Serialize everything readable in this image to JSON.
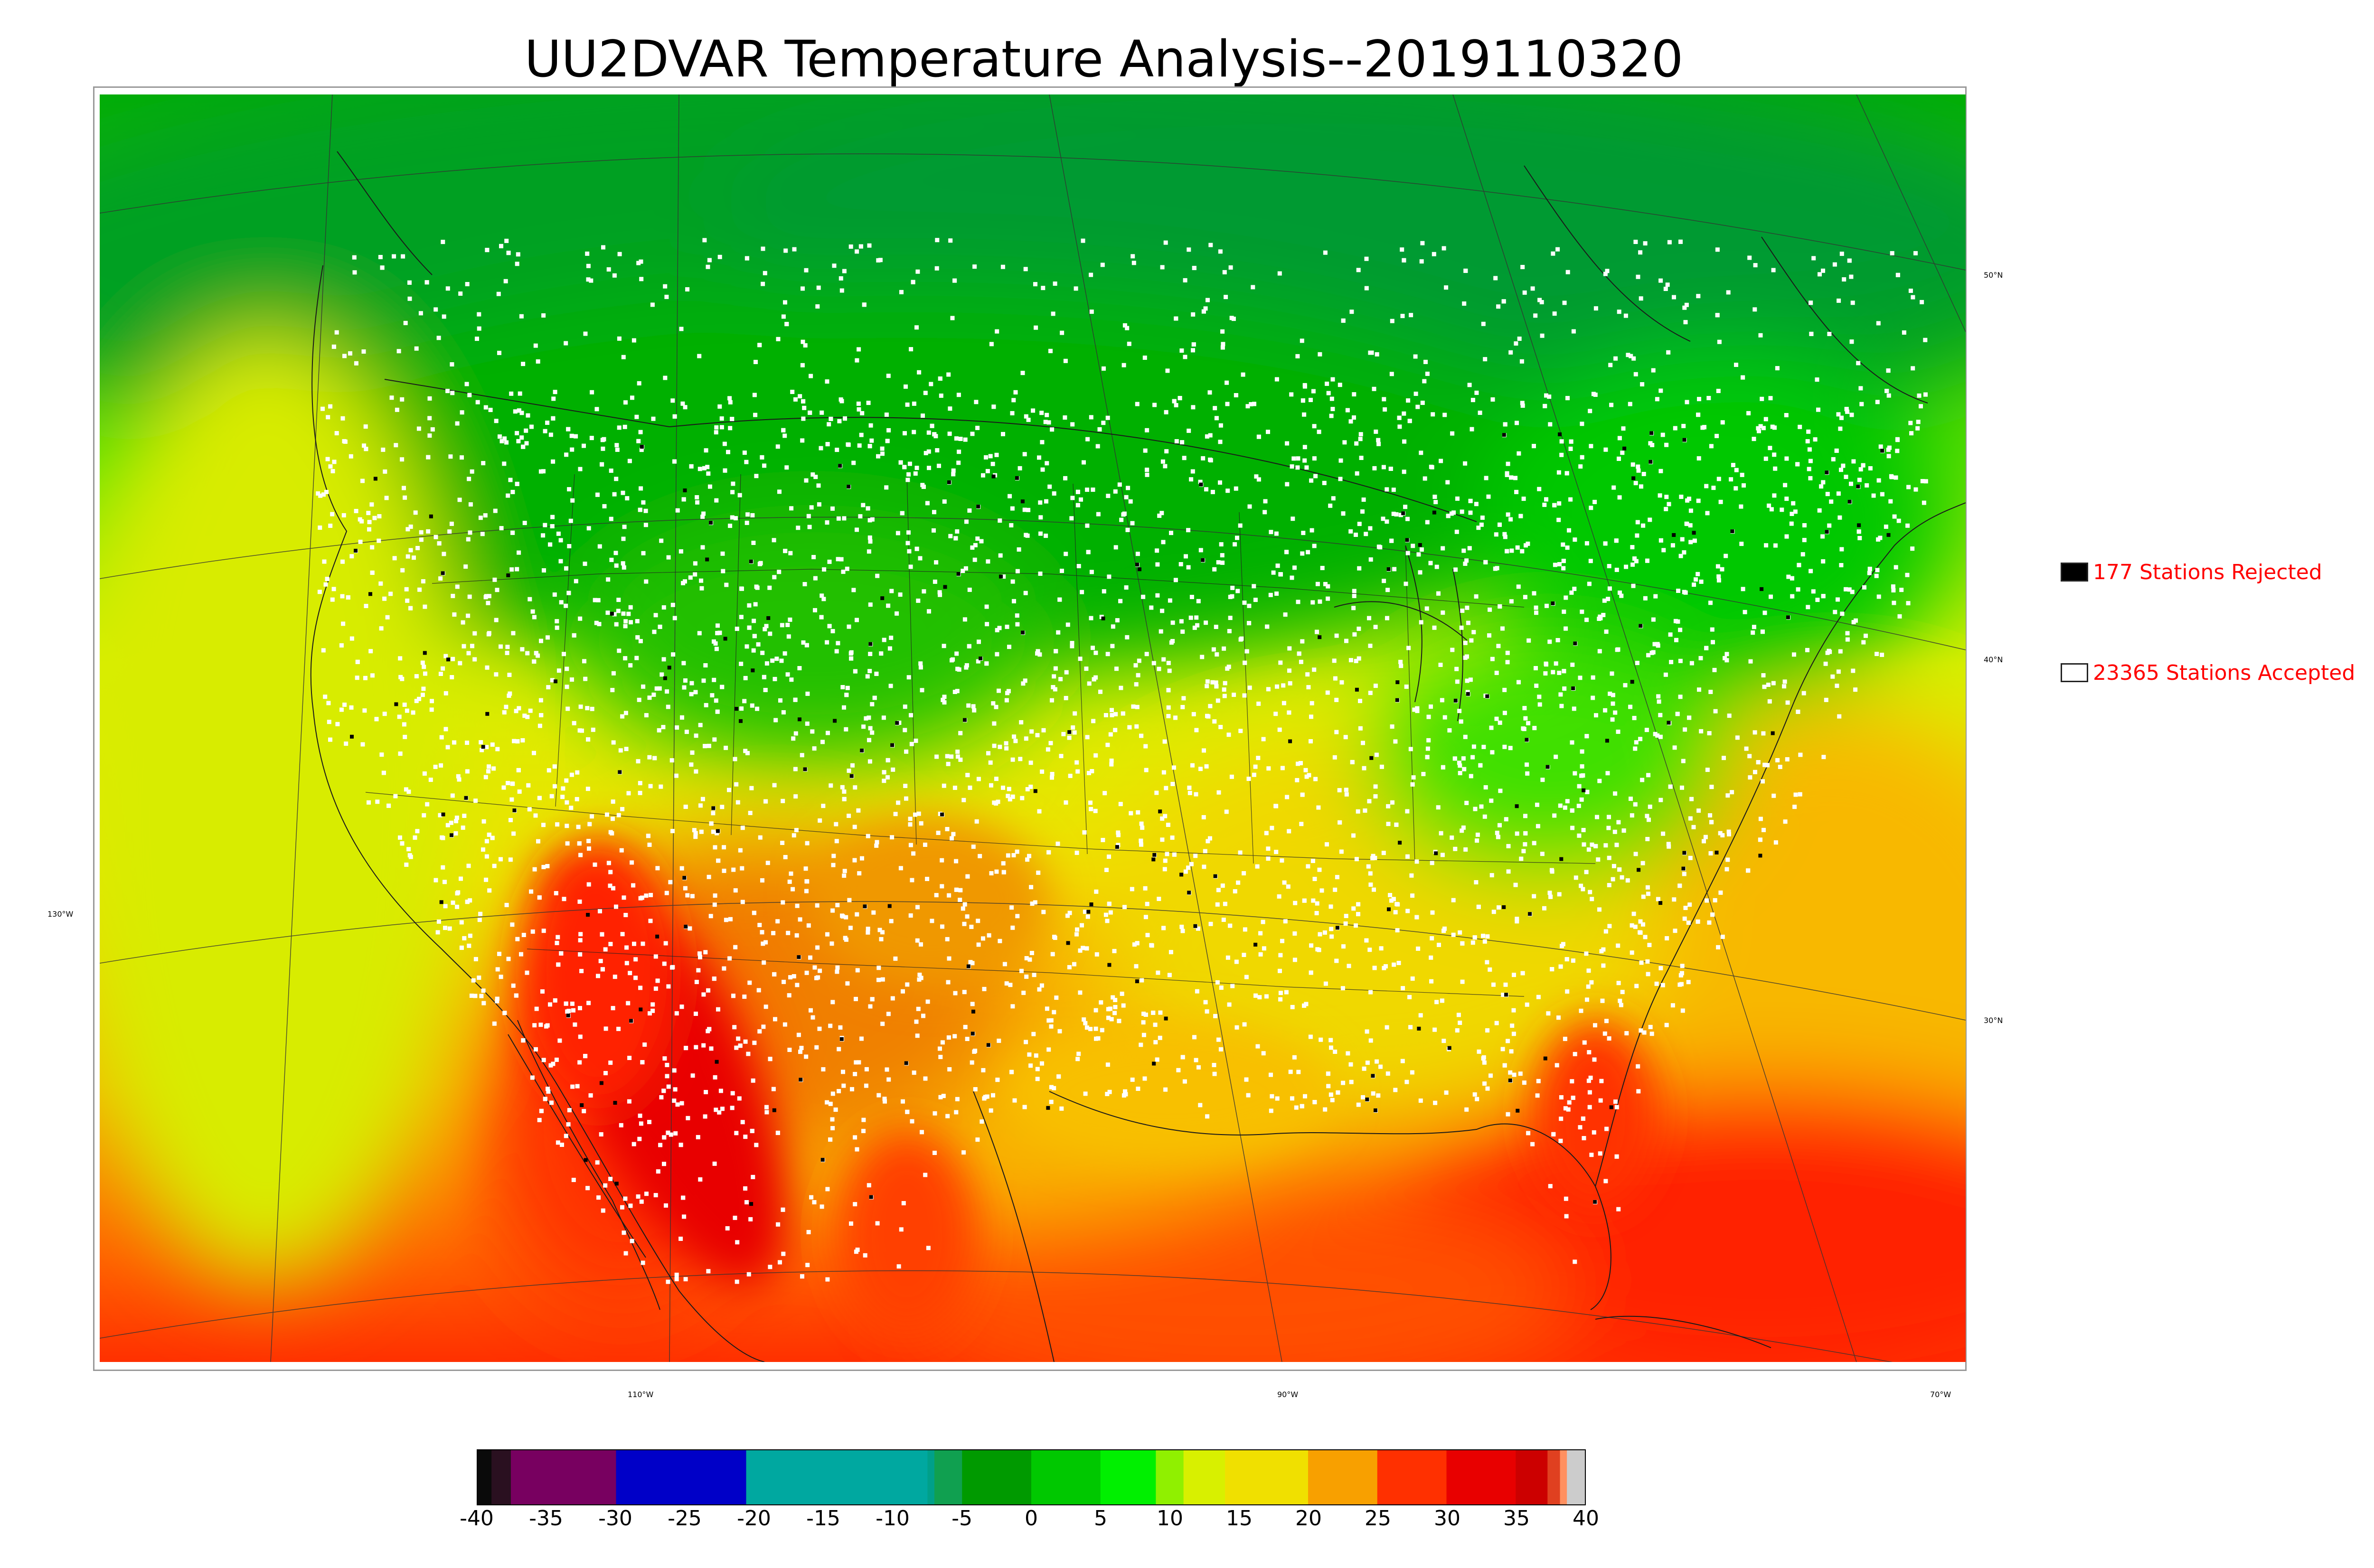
{
  "title": "UU2DVAR Temperature Analysis--2019110320",
  "legend": {
    "items": [
      {
        "label": "177 Stations Rejected",
        "swatch": "#000000"
      },
      {
        "label": "23365 Stations Accepted",
        "swatch": "#ffffff"
      }
    ]
  },
  "graticule": {
    "lat_labels": [
      "50°N",
      "40°N",
      "30°N"
    ],
    "lon_labels": [
      "130°W",
      "110°W",
      "90°W",
      "70°W"
    ]
  },
  "colorbar": {
    "ticks": [
      "-40",
      "-35",
      "-30",
      "-25",
      "-20",
      "-15",
      "-10",
      "-5",
      "0",
      "5",
      "10",
      "15",
      "20",
      "25",
      "30",
      "35",
      "40"
    ],
    "range": [
      -40,
      40
    ],
    "segments": [
      {
        "from": -40,
        "to": -39,
        "color": "#0a0a0a"
      },
      {
        "from": -39,
        "to": -37.6,
        "color": "#2a1020"
      },
      {
        "from": -37.6,
        "to": -30,
        "color": "#780060"
      },
      {
        "from": -30,
        "to": -20.6,
        "color": "#0000c8"
      },
      {
        "from": -20.6,
        "to": -7.5,
        "color": "#00a8a0"
      },
      {
        "from": -7.5,
        "to": -7,
        "color": "#00a08a"
      },
      {
        "from": -7,
        "to": -5,
        "color": "#10a050"
      },
      {
        "from": -5,
        "to": 0,
        "color": "#009a00"
      },
      {
        "from": 0,
        "to": 5,
        "color": "#00c800"
      },
      {
        "from": 5,
        "to": 9,
        "color": "#00f000"
      },
      {
        "from": 9,
        "to": 11,
        "color": "#90f000"
      },
      {
        "from": 11,
        "to": 14,
        "color": "#d8f000"
      },
      {
        "from": 14,
        "to": 20,
        "color": "#f0e000"
      },
      {
        "from": 20,
        "to": 25,
        "color": "#f8a000"
      },
      {
        "from": 25,
        "to": 30,
        "color": "#ff3000"
      },
      {
        "from": 30,
        "to": 35,
        "color": "#e80000"
      },
      {
        "from": 35,
        "to": 37.3,
        "color": "#cc0000"
      },
      {
        "from": 37.3,
        "to": 38.2,
        "color": "#e04020"
      },
      {
        "from": 38.2,
        "to": 38.7,
        "color": "#ff9060"
      },
      {
        "from": 38.7,
        "to": 40,
        "color": "#cccccc"
      }
    ]
  },
  "map": {
    "description_colors": {
      "cold_north": "#22a022",
      "cool": "#00d000",
      "mild": "#e8e800",
      "warm": "#f8a800",
      "hot": "#e80000",
      "station_accepted": "#ffffff",
      "station_rejected": "#000000"
    }
  }
}
